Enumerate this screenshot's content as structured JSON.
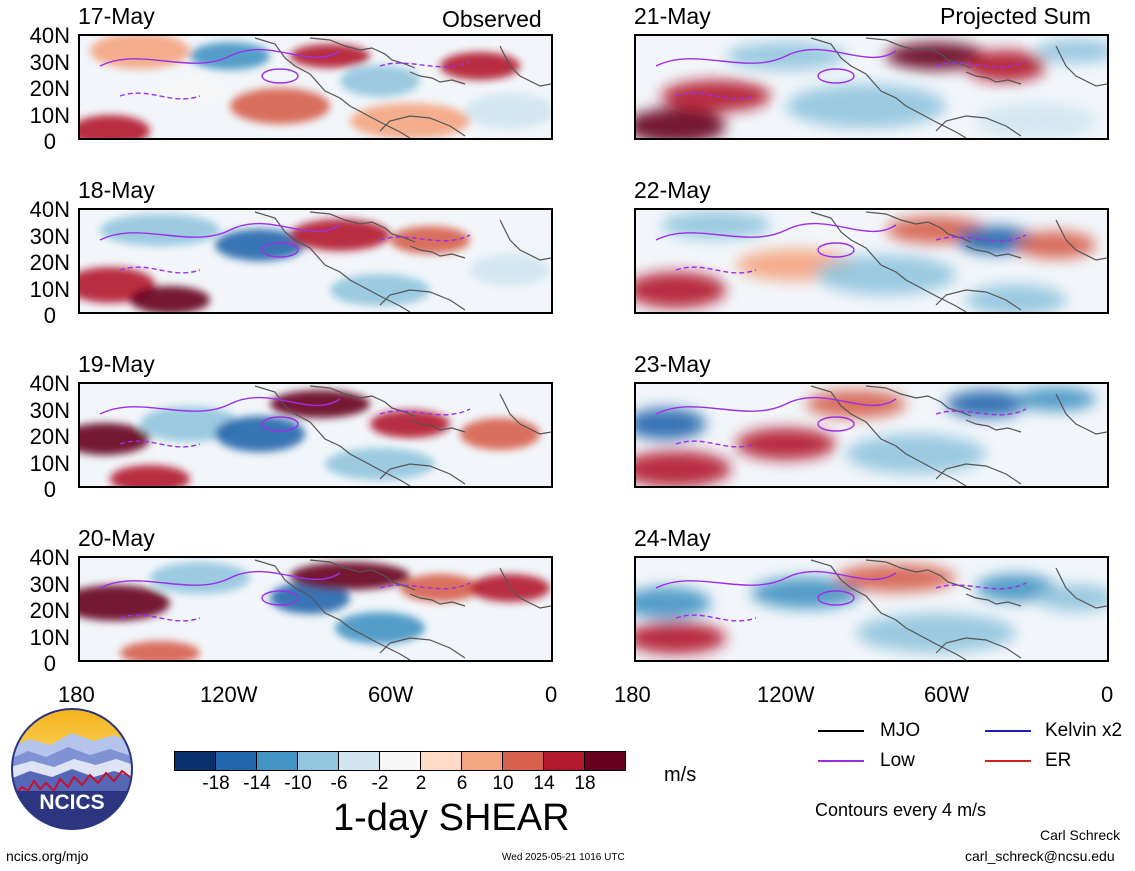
{
  "headings": {
    "observed": "Observed",
    "projected": "Projected Sum"
  },
  "panels": {
    "observed": [
      "17-May",
      "18-May",
      "19-May",
      "20-May"
    ],
    "projected": [
      "21-May",
      "22-May",
      "23-May",
      "24-May"
    ]
  },
  "axes": {
    "lat_labels": [
      "40N",
      "30N",
      "20N",
      "10N",
      "0"
    ],
    "lon_labels": [
      "180",
      "120W",
      "60W",
      "0"
    ]
  },
  "colorbar": {
    "tick_labels": [
      "-18",
      "-14",
      "-10",
      "-6",
      "-2",
      "2",
      "6",
      "10",
      "14",
      "18"
    ],
    "colors": [
      "#08306b",
      "#2166ac",
      "#4393c3",
      "#92c5de",
      "#d1e5f0",
      "#f7f7f7",
      "#fddbc7",
      "#f4a582",
      "#d6604d",
      "#b2182b",
      "#67001f"
    ],
    "units": "m/s",
    "title": "1-day SHEAR"
  },
  "legend": {
    "items": [
      {
        "label": "MJO",
        "color": "#000000"
      },
      {
        "label": "Kelvin x2",
        "color": "#1f1fbf"
      },
      {
        "label": "Low",
        "color": "#9b30e6"
      },
      {
        "label": "ER",
        "color": "#cc2222"
      }
    ],
    "contour_note": "Contours every 4 m/s"
  },
  "footer": {
    "site": "ncics.org/mjo",
    "timestamp": "Wed 2025-05-21 1016 UTC",
    "author": "Carl Schreck",
    "email": "carl_schreck@ncsu.edu",
    "logo_text": "NCICS"
  }
}
